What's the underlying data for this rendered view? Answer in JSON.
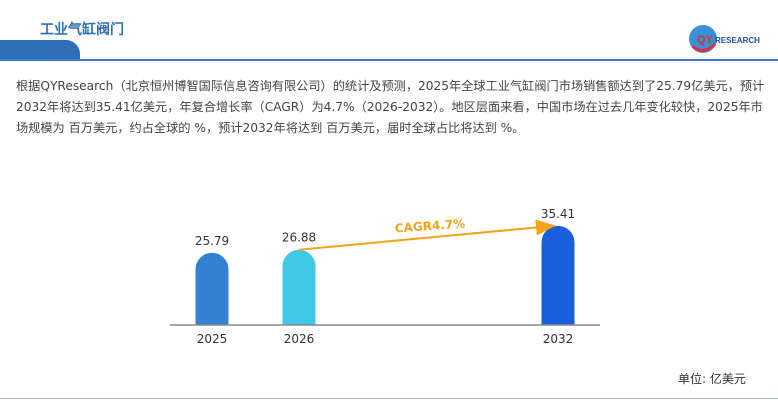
{
  "header": {
    "title": "工业气缸阀门",
    "logo_text": "QYRESEARCH"
  },
  "description": "根据QYResearch（北京恒州博智国际信息咨询有限公司）的统计及预测，2025年全球工业气缸阀门市场销售额达到了25.79亿美元，预计2032年将达到35.41亿美元，年复合增长率（CAGR）为4.7%（2026-2032）。地区层面来看，中国市场在过去几年变化较快，2025年市场规模为 百万美元，约占全球的 %，预计2032年将达到 百万美元，届时全球占比将达到 %。",
  "unit": "单位: 亿美元",
  "chart_data": {
    "type": "bar",
    "categories": [
      "2025",
      "2026",
      "2032"
    ],
    "values": [
      25.79,
      26.88,
      35.41
    ],
    "value_labels": [
      "25.79",
      "26.88",
      "35.41"
    ],
    "colors": [
      "#3380d4",
      "#40c8e6",
      "#1a5fdc"
    ],
    "annotation": "CAGR4.7%",
    "annotation_color": "#f5a31a",
    "ylim": [
      0,
      40
    ],
    "grid": false
  }
}
